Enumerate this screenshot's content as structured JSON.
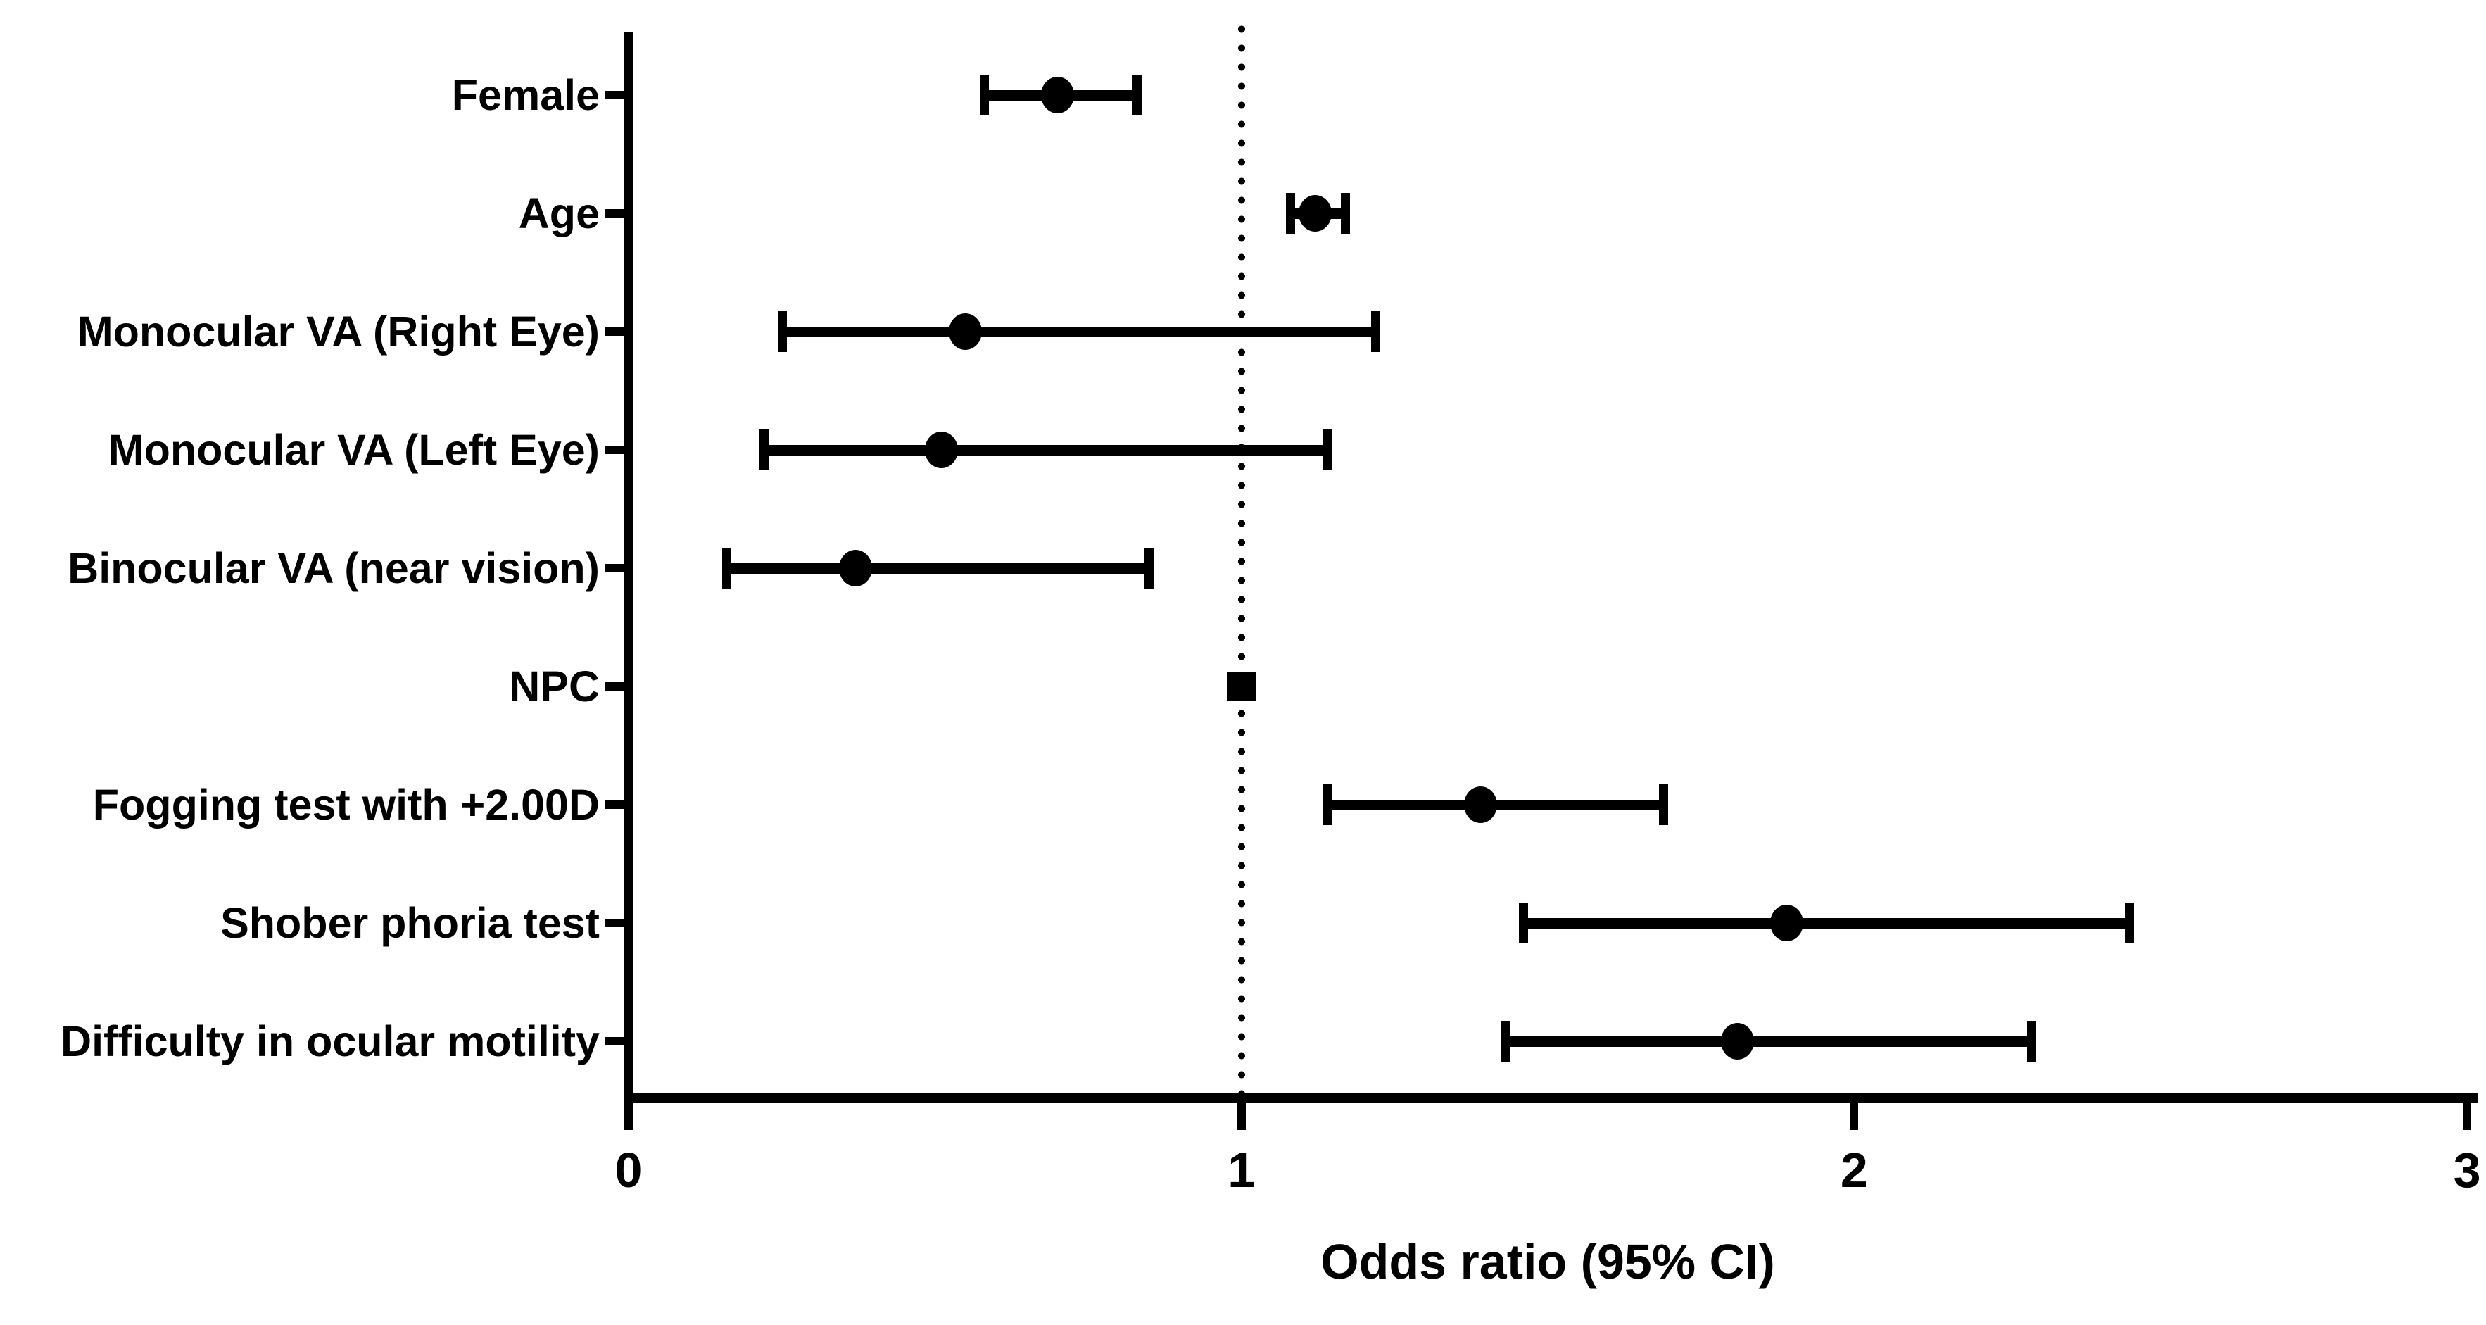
{
  "chart_data": {
    "type": "scatter",
    "subtype": "forest-plot",
    "title": "",
    "xlabel": "Odds ratio (95% CI)",
    "ylabel": "",
    "xlim": [
      0,
      3
    ],
    "xticks": [
      "0",
      "1",
      "2",
      "3"
    ],
    "reference_line_x": 1,
    "grid": "off",
    "colors": {
      "foreground": "#000000",
      "background": "#ffffff"
    },
    "categories": [
      "Female",
      "Age",
      "Monocular VA (Right Eye)",
      "Monocular VA (Left Eye)",
      "Binocular VA (near vision)",
      "NPC",
      "Fogging test with +2.00D",
      "Shober phoria test",
      "Difficulty in ocular motility"
    ],
    "series": [
      {
        "name": "Odds ratio (95% CI)",
        "points": [
          {
            "label": "Female",
            "or": 0.7,
            "ci_low": 0.58,
            "ci_high": 0.83,
            "marker": "circle"
          },
          {
            "label": "Age",
            "or": 1.12,
            "ci_low": 1.08,
            "ci_high": 1.17,
            "marker": "circle"
          },
          {
            "label": "Monocular VA (Right Eye)",
            "or": 0.55,
            "ci_low": 0.25,
            "ci_high": 1.22,
            "marker": "circle"
          },
          {
            "label": "Monocular VA (Left Eye)",
            "or": 0.51,
            "ci_low": 0.22,
            "ci_high": 1.14,
            "marker": "circle"
          },
          {
            "label": "Binocular VA (near vision)",
            "or": 0.37,
            "ci_low": 0.16,
            "ci_high": 0.85,
            "marker": "circle"
          },
          {
            "label": "NPC",
            "or": 1.0,
            "ci_low": 1.0,
            "ci_high": 1.0,
            "marker": "square"
          },
          {
            "label": "Fogging test with +2.00D",
            "or": 1.39,
            "ci_low": 1.14,
            "ci_high": 1.69,
            "marker": "circle"
          },
          {
            "label": "Shober phoria test",
            "or": 1.89,
            "ci_low": 1.46,
            "ci_high": 2.45,
            "marker": "circle"
          },
          {
            "label": "Difficulty in ocular motility",
            "or": 1.81,
            "ci_low": 1.43,
            "ci_high": 2.29,
            "marker": "circle"
          }
        ]
      }
    ]
  }
}
